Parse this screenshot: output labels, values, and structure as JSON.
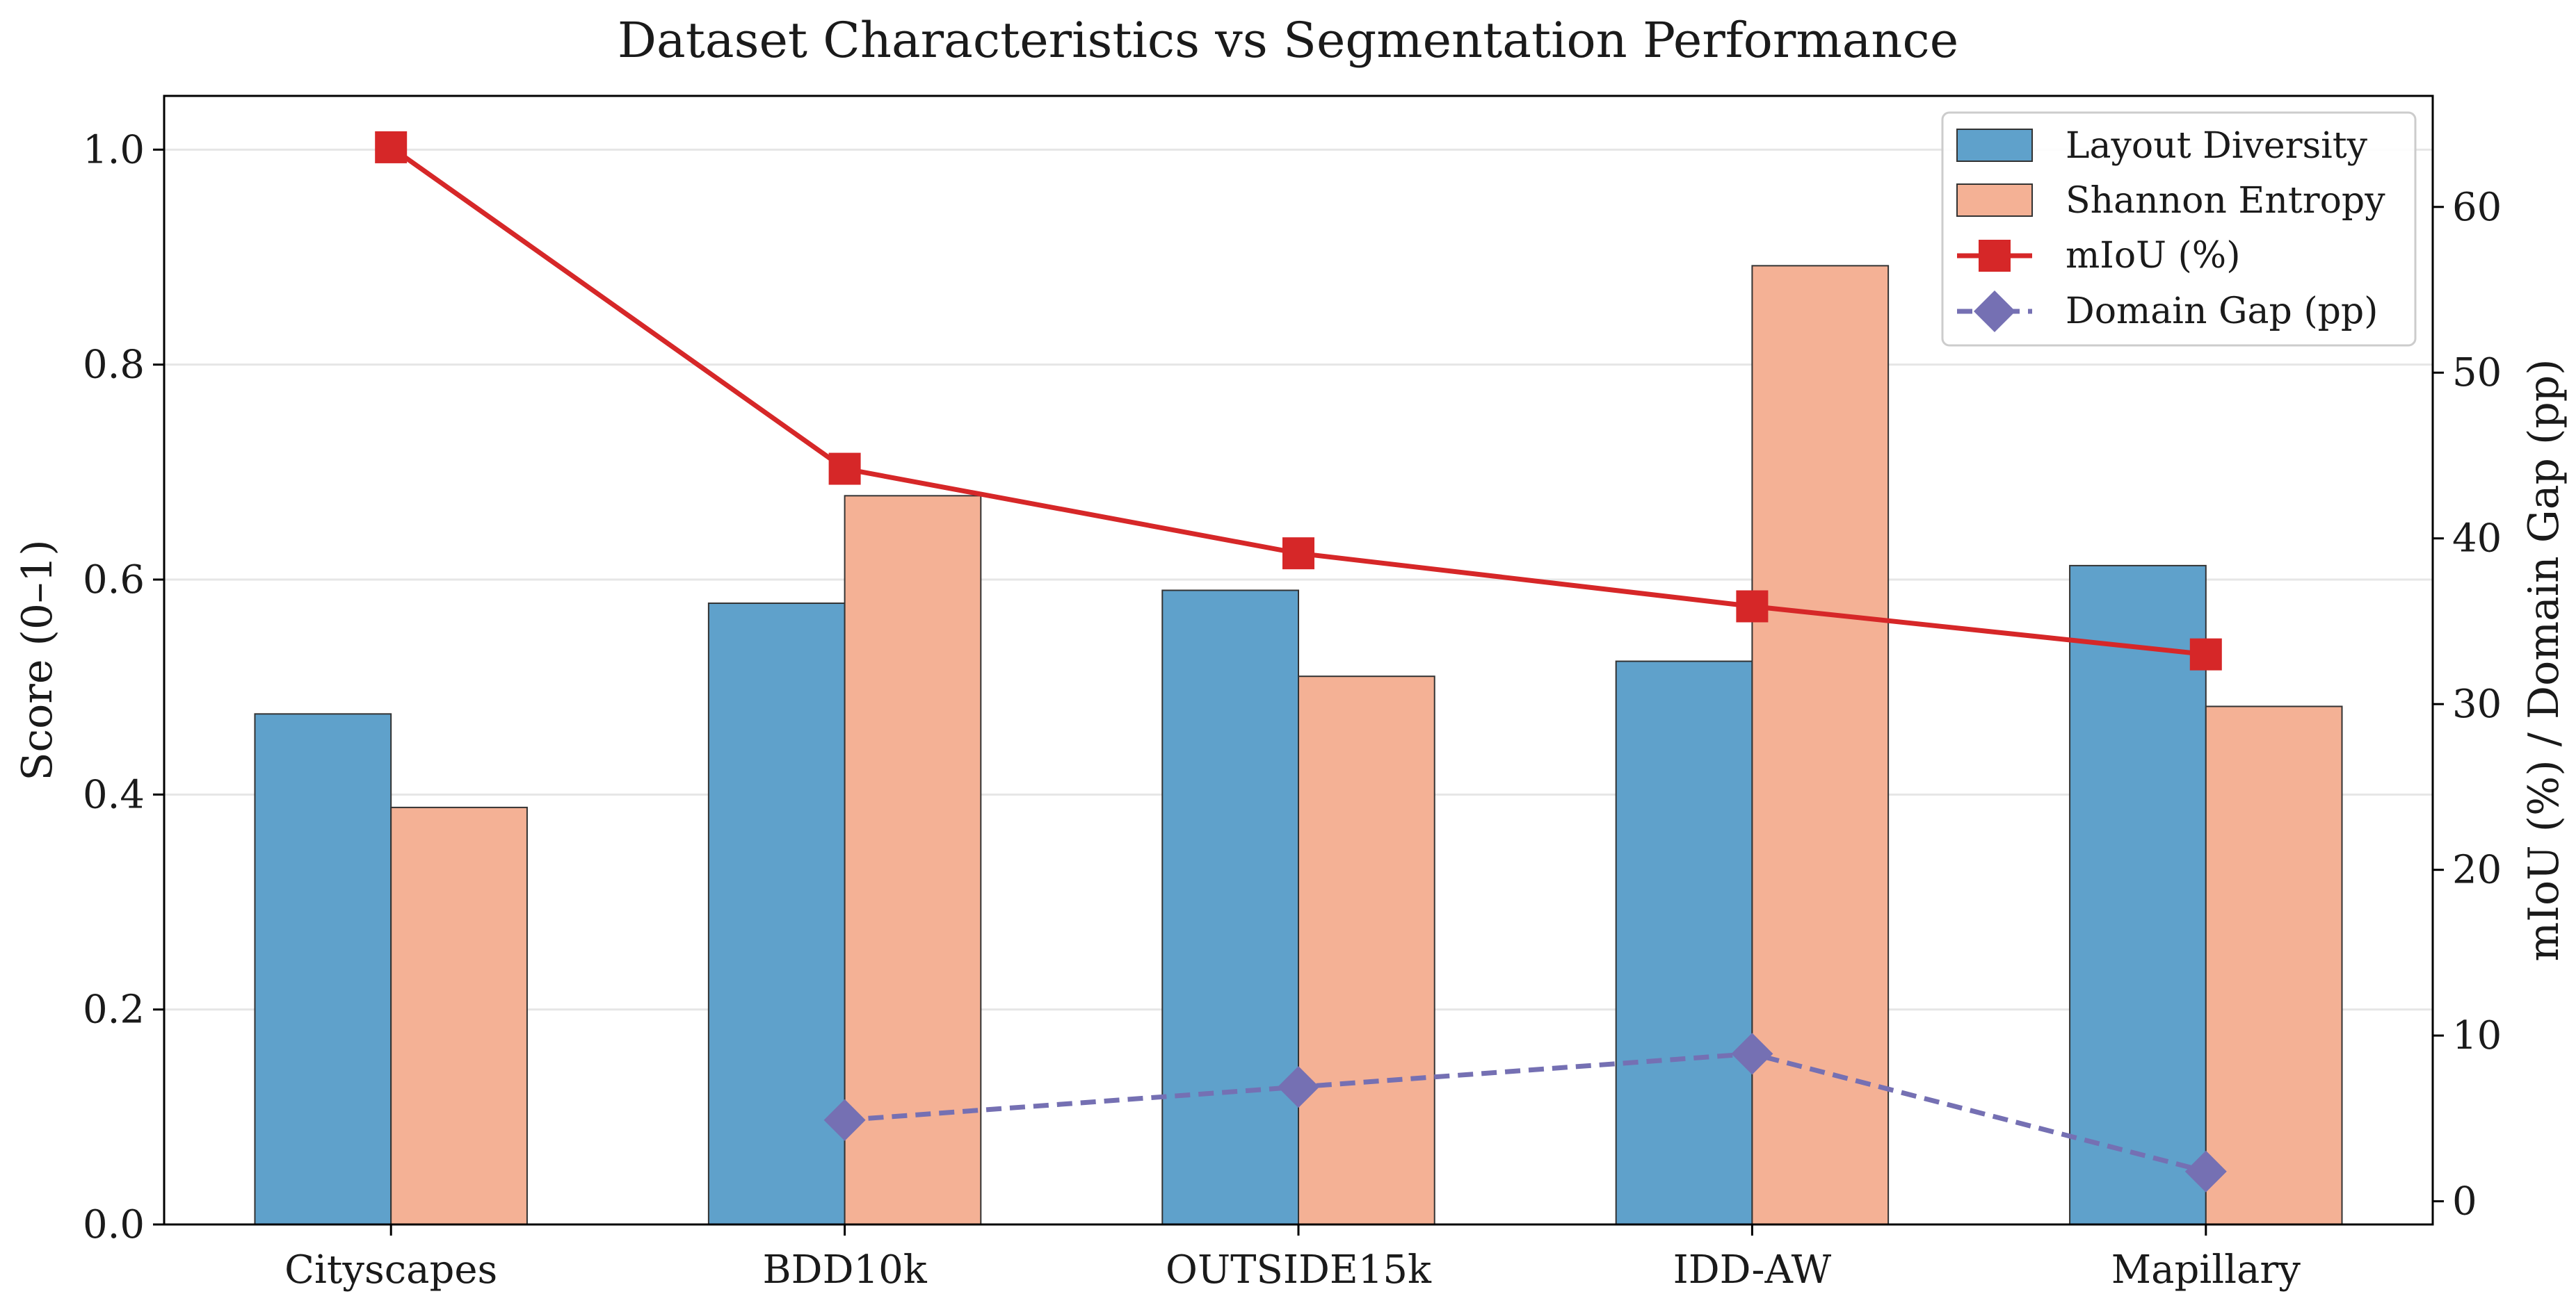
{
  "chart_data": {
    "type": "bar",
    "title": "Dataset Characteristics vs Segmentation Performance",
    "categories": [
      "Cityscapes",
      "BDD10k",
      "OUTSIDE15k",
      "IDD-AW",
      "Mapillary"
    ],
    "ylabel": "Score (0–1)",
    "ylabel_right": "mIoU (%) / Domain Gap (pp)",
    "ylim": [
      0,
      1.05
    ],
    "ylim_right": [
      -1.4,
      66.7
    ],
    "yticks": [
      "0.0",
      "0.2",
      "0.4",
      "0.6",
      "0.8",
      "1.0"
    ],
    "yticks_right": [
      "0",
      "10",
      "20",
      "30",
      "40",
      "50",
      "60"
    ],
    "grid": "horizontal",
    "legend_position": "top-right",
    "series": [
      {
        "name": "Layout Diversity",
        "kind": "bar",
        "axis": "left",
        "color": "#5fa1cb",
        "values": [
          0.475,
          0.578,
          0.59,
          0.524,
          0.613
        ]
      },
      {
        "name": "Shannon Entropy",
        "kind": "bar",
        "axis": "left",
        "color": "#f4b195",
        "values": [
          0.388,
          0.678,
          0.51,
          0.892,
          0.482
        ]
      },
      {
        "name": "mIoU (%)",
        "kind": "line",
        "axis": "right",
        "color": "#d62728",
        "marker": "square",
        "dash": "solid",
        "values": [
          63.6,
          44.2,
          39.1,
          35.9,
          33.0
        ]
      },
      {
        "name": "Domain Gap (pp)",
        "kind": "line",
        "axis": "right",
        "color": "#7570b3",
        "marker": "diamond",
        "dash": "dashed",
        "values": [
          null,
          4.9,
          6.9,
          8.9,
          1.8
        ]
      }
    ]
  }
}
